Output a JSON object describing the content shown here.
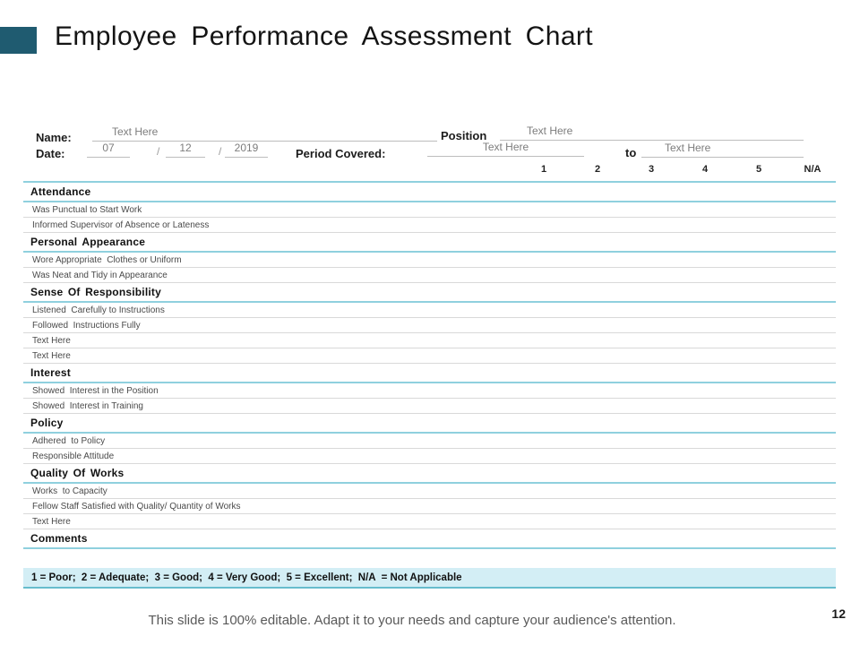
{
  "slide": {
    "title": "Employee Performance Assessment Chart",
    "page_number": "12",
    "footer": "This slide is 100% editable. Adapt it to your needs and capture your audience's attention."
  },
  "form": {
    "name_label": "Name:",
    "name_value": "Text Here",
    "date_label": "Date:",
    "date_month": "07",
    "date_separator": "/",
    "date_day": "12",
    "date_year": "2019",
    "period_label": "Period Covered:",
    "period_from": "Text Here",
    "period_to_label": "to",
    "period_to": "Text Here",
    "position_label": "Position",
    "position_value": "Text Here"
  },
  "table": {
    "rating_columns": [
      "1",
      "2",
      "3",
      "4",
      "5",
      "N/A"
    ],
    "sections": [
      {
        "title": "Attendance",
        "items": [
          "Was Punctual to Start Work",
          "Informed Supervisor of Absence or Lateness"
        ]
      },
      {
        "title": "Personal Appearance",
        "items": [
          "Wore Appropriate  Clothes or Uniform",
          "Was Neat and Tidy in Appearance"
        ]
      },
      {
        "title": "Sense Of Responsibility",
        "items": [
          "Listened  Carefully to Instructions",
          "Followed  Instructions Fully",
          "Text Here",
          "Text Here"
        ]
      },
      {
        "title": "Interest",
        "items": [
          "Showed  Interest in the Position",
          "Showed  Interest in Training"
        ]
      },
      {
        "title": "Policy",
        "items": [
          "Adhered  to Policy",
          "Responsible Attitude"
        ]
      },
      {
        "title": "Quality Of Works",
        "items": [
          "Works  to Capacity",
          "Fellow Staff Satisfied with Quality/ Quantity of Works",
          "Text Here"
        ]
      },
      {
        "title": "Comments",
        "items": []
      }
    ],
    "legend": "1 = Poor;  2 = Adequate;  3 = Good;  4 = Very Good;  5 = Excellent;  N/A  = Not Applicable"
  },
  "colors": {
    "accent_teal": "#1f5b70",
    "table_header_border": "#8fd0de",
    "row_border": "#d9d9d9",
    "legend_bg": "#d3eef5",
    "legend_border": "#66bccd",
    "field_line": "#bdbdbd",
    "footer_text": "#595959"
  }
}
